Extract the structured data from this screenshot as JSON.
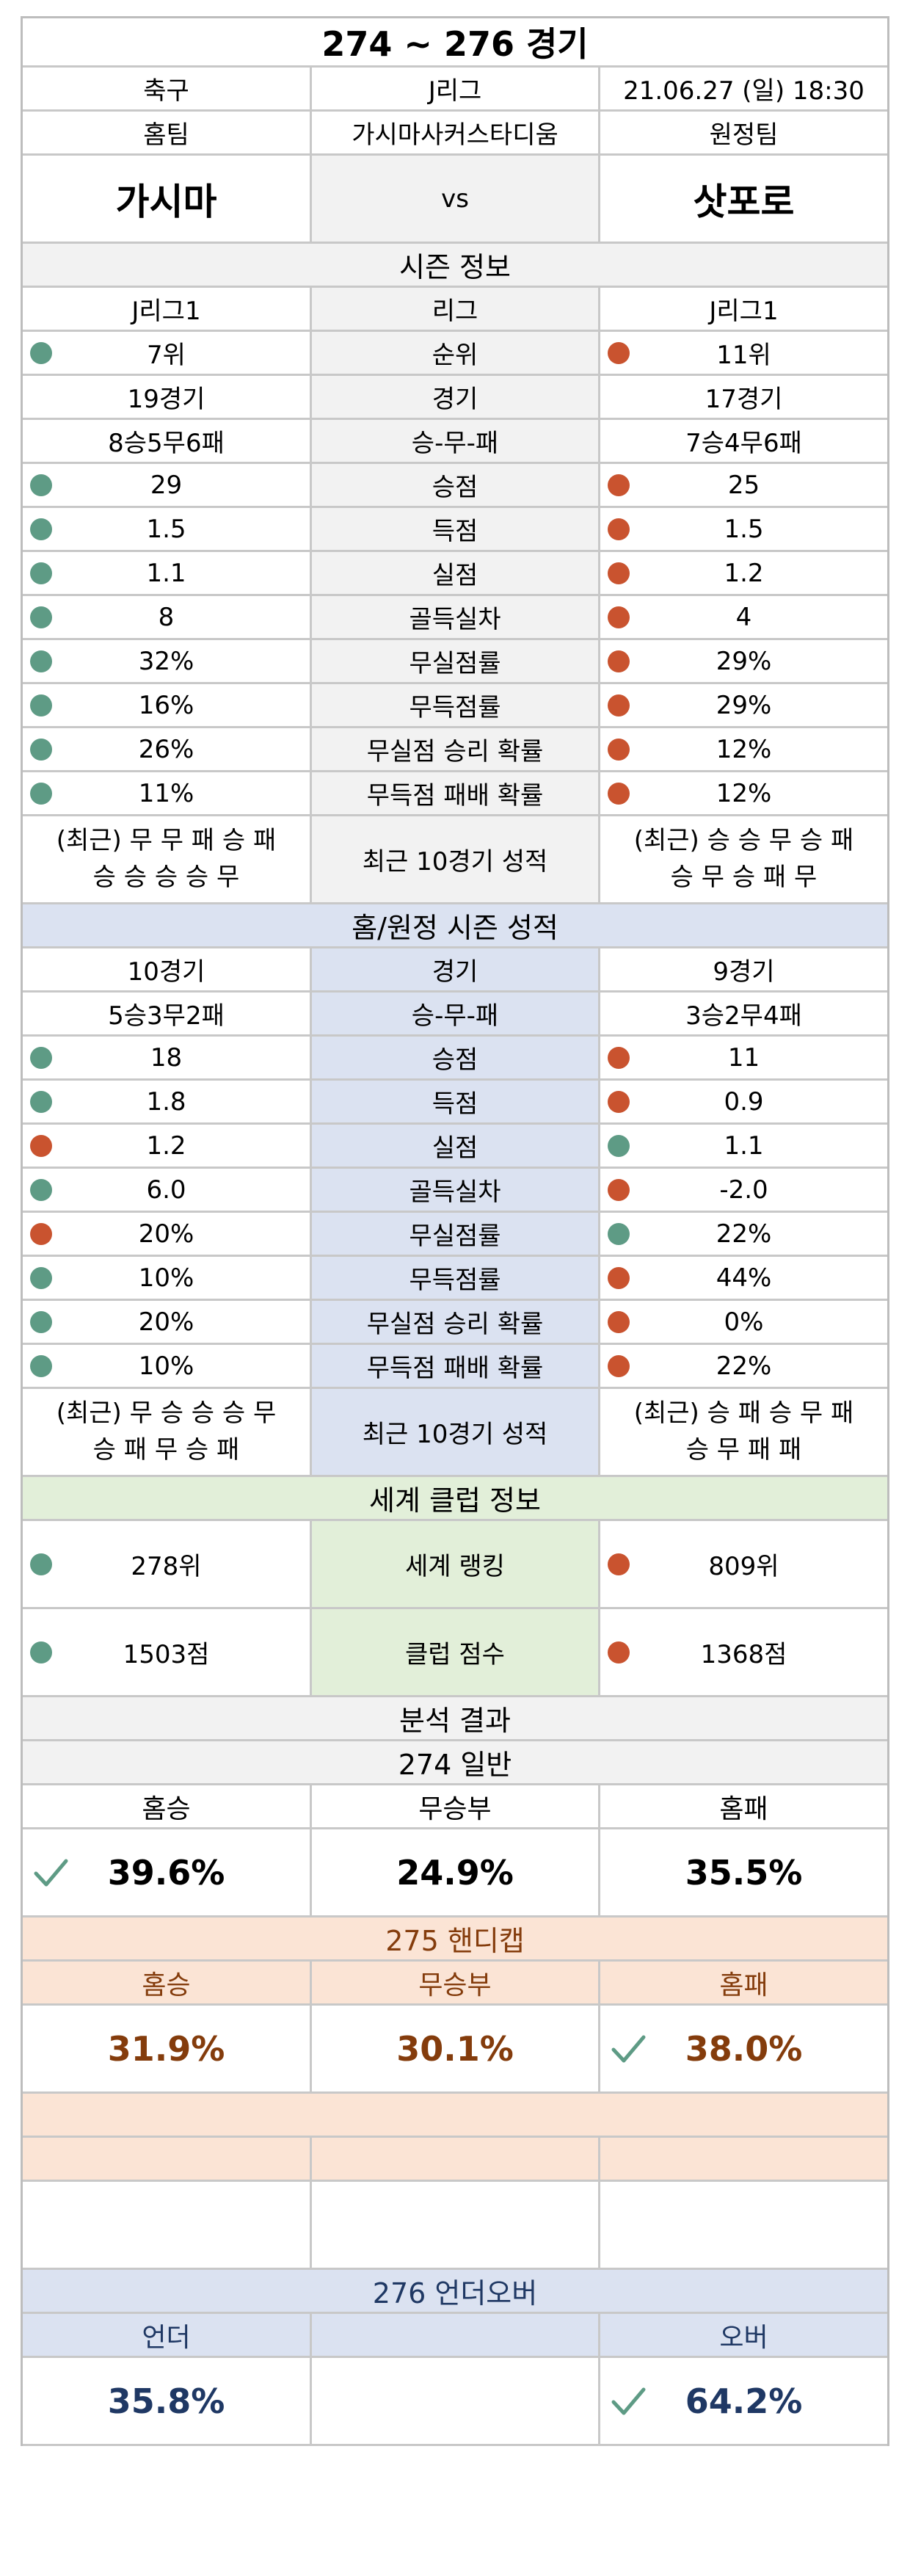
{
  "header": {
    "title": "274 ~ 276 경기",
    "sport": "축구",
    "league": "J리그",
    "datetime": "21.06.27 (일) 18:30",
    "home_label": "홈팀",
    "venue": "가시마사커스타디움",
    "away_label": "원정팀",
    "home_team": "가시마",
    "vs": "vs",
    "away_team": "삿포로"
  },
  "season": {
    "title": "시즌 정보",
    "rows": [
      {
        "home": "J리그1",
        "label": "리그",
        "away": "J리그1",
        "home_dot": "",
        "away_dot": ""
      },
      {
        "home": "7위",
        "label": "순위",
        "away": "11위",
        "home_dot": "green",
        "away_dot": "red"
      },
      {
        "home": "19경기",
        "label": "경기",
        "away": "17경기",
        "home_dot": "",
        "away_dot": ""
      },
      {
        "home": "8승5무6패",
        "label": "승-무-패",
        "away": "7승4무6패",
        "home_dot": "",
        "away_dot": ""
      },
      {
        "home": "29",
        "label": "승점",
        "away": "25",
        "home_dot": "green",
        "away_dot": "red"
      },
      {
        "home": "1.5",
        "label": "득점",
        "away": "1.5",
        "home_dot": "green",
        "away_dot": "red"
      },
      {
        "home": "1.1",
        "label": "실점",
        "away": "1.2",
        "home_dot": "green",
        "away_dot": "red"
      },
      {
        "home": "8",
        "label": "골득실차",
        "away": "4",
        "home_dot": "green",
        "away_dot": "red"
      },
      {
        "home": "32%",
        "label": "무실점률",
        "away": "29%",
        "home_dot": "green",
        "away_dot": "red"
      },
      {
        "home": "16%",
        "label": "무득점률",
        "away": "29%",
        "home_dot": "green",
        "away_dot": "red"
      },
      {
        "home": "26%",
        "label": "무실점 승리 확률",
        "away": "12%",
        "home_dot": "green",
        "away_dot": "red"
      },
      {
        "home": "11%",
        "label": "무득점 패배 확률",
        "away": "12%",
        "home_dot": "green",
        "away_dot": "red"
      }
    ],
    "recent": {
      "home_line1": "(최근) 무 무 패 승 패",
      "home_line2": "승 승 승 승 무",
      "label": "최근 10경기 성적",
      "away_line1": "(최근) 승 승 무 승 패",
      "away_line2": "승 무 승 패 무"
    }
  },
  "homeaway": {
    "title": "홈/원정 시즌 성적",
    "rows": [
      {
        "home": "10경기",
        "label": "경기",
        "away": "9경기",
        "home_dot": "",
        "away_dot": ""
      },
      {
        "home": "5승3무2패",
        "label": "승-무-패",
        "away": "3승2무4패",
        "home_dot": "",
        "away_dot": ""
      },
      {
        "home": "18",
        "label": "승점",
        "away": "11",
        "home_dot": "green",
        "away_dot": "red"
      },
      {
        "home": "1.8",
        "label": "득점",
        "away": "0.9",
        "home_dot": "green",
        "away_dot": "red"
      },
      {
        "home": "1.2",
        "label": "실점",
        "away": "1.1",
        "home_dot": "red",
        "away_dot": "green"
      },
      {
        "home": "6.0",
        "label": "골득실차",
        "away": "-2.0",
        "home_dot": "green",
        "away_dot": "red"
      },
      {
        "home": "20%",
        "label": "무실점률",
        "away": "22%",
        "home_dot": "red",
        "away_dot": "green"
      },
      {
        "home": "10%",
        "label": "무득점률",
        "away": "44%",
        "home_dot": "green",
        "away_dot": "red"
      },
      {
        "home": "20%",
        "label": "무실점 승리 확률",
        "away": "0%",
        "home_dot": "green",
        "away_dot": "red"
      },
      {
        "home": "10%",
        "label": "무득점 패배 확률",
        "away": "22%",
        "home_dot": "green",
        "away_dot": "red"
      }
    ],
    "recent": {
      "home_line1": "(최근) 무 승 승 승 무",
      "home_line2": "승 패 무 승 패",
      "label": "최근 10경기 성적",
      "away_line1": "(최근) 승 패 승 무 패",
      "away_line2": "승 무 패 패"
    }
  },
  "world": {
    "title": "세계 클럽 정보",
    "rows": [
      {
        "home": "278위",
        "label": "세계 랭킹",
        "away": "809위",
        "home_dot": "green",
        "away_dot": "red"
      },
      {
        "home": "1503점",
        "label": "클럽 점수",
        "away": "1368점",
        "home_dot": "green",
        "away_dot": "red"
      }
    ]
  },
  "analysis": {
    "title": "분석 결과",
    "general": {
      "title": "274 일반",
      "home_label": "홈승",
      "draw_label": "무승부",
      "away_label": "홈패",
      "home_value": "39.6%",
      "draw_value": "24.9%",
      "away_value": "35.5%",
      "pick": "home"
    },
    "handicap": {
      "title": "275 핸디캡",
      "home_label": "홈승",
      "draw_label": "무승부",
      "away_label": "홈패",
      "home_value": "31.9%",
      "draw_value": "30.1%",
      "away_value": "38.0%",
      "pick": "away"
    },
    "underover": {
      "title": "276 언더오버",
      "under_label": "언더",
      "over_label": "오버",
      "under_value": "35.8%",
      "over_value": "64.2%",
      "pick": "over"
    }
  },
  "colors": {
    "green_dot": "#5e9b85",
    "red_dot": "#c9532f",
    "handicap_text": "#843c0c",
    "underover_text": "#1f3864",
    "homeaway_bg": "#dbe2f1",
    "world_bg": "#e2efd9",
    "handicap_bg": "#fbe4d5"
  },
  "icons": {
    "dot": "status-dot-icon",
    "check": "checkmark-icon"
  }
}
